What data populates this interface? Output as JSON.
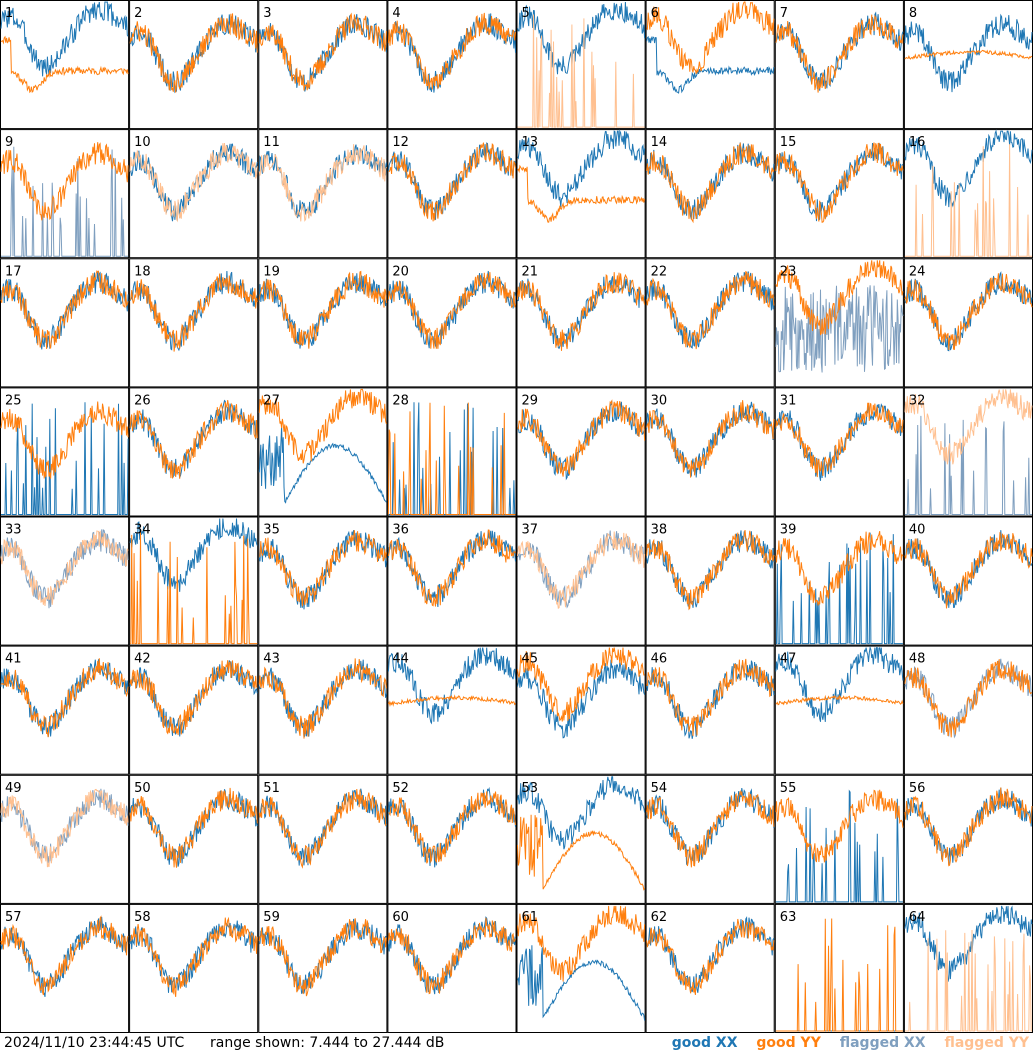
{
  "footer": {
    "timestamp": "2024/11/10 23:44:45 UTC",
    "range_text": "range shown: 7.444 to 27.444 dB"
  },
  "legend": [
    {
      "label": "good XX",
      "color": "#1f77b4"
    },
    {
      "label": "good YY",
      "color": "#ff7f0e"
    },
    {
      "label": "flagged XX",
      "color": "#7f9fbf"
    },
    {
      "label": "flagged YY",
      "color": "#ffc090"
    }
  ],
  "chart_data": {
    "type": "line",
    "title": "",
    "xlabel": "",
    "ylabel": "",
    "ylim_db": [
      7.444,
      27.444
    ],
    "grid_layout": "8x8",
    "panels": [
      {
        "id": "1",
        "xx": "good",
        "yy": "good",
        "xx_shape": "high",
        "yy_shape": "dip"
      },
      {
        "id": "2",
        "xx": "good",
        "yy": "good",
        "xx_shape": "normal",
        "yy_shape": "normal"
      },
      {
        "id": "3",
        "xx": "good",
        "yy": "good",
        "xx_shape": "normal",
        "yy_shape": "normal"
      },
      {
        "id": "4",
        "xx": "good",
        "yy": "good",
        "xx_shape": "normal",
        "yy_shape": "normal"
      },
      {
        "id": "5",
        "xx": "good",
        "yy": "flagged",
        "xx_shape": "high",
        "yy_shape": "spikes"
      },
      {
        "id": "6",
        "xx": "good",
        "yy": "good",
        "xx_shape": "dip",
        "yy_shape": "high"
      },
      {
        "id": "7",
        "xx": "good",
        "yy": "good",
        "xx_shape": "normal",
        "yy_shape": "normal"
      },
      {
        "id": "8",
        "xx": "good",
        "yy": "good",
        "xx_shape": "normal",
        "yy_shape": "flat"
      },
      {
        "id": "9",
        "xx": "flagged",
        "yy": "good",
        "xx_shape": "spikes",
        "yy_shape": "normal"
      },
      {
        "id": "10",
        "xx": "good",
        "yy": "flagged",
        "xx_shape": "normal",
        "yy_shape": "normal"
      },
      {
        "id": "11",
        "xx": "good",
        "yy": "flagged",
        "xx_shape": "normal",
        "yy_shape": "normal"
      },
      {
        "id": "12",
        "xx": "good",
        "yy": "good",
        "xx_shape": "normal",
        "yy_shape": "normal"
      },
      {
        "id": "13",
        "xx": "good",
        "yy": "good",
        "xx_shape": "high",
        "yy_shape": "dip"
      },
      {
        "id": "14",
        "xx": "good",
        "yy": "good",
        "xx_shape": "normal",
        "yy_shape": "normal"
      },
      {
        "id": "15",
        "xx": "good",
        "yy": "good",
        "xx_shape": "normal",
        "yy_shape": "normal"
      },
      {
        "id": "16",
        "xx": "good",
        "yy": "flagged",
        "xx_shape": "high",
        "yy_shape": "spikes"
      },
      {
        "id": "17",
        "xx": "good",
        "yy": "good",
        "xx_shape": "normal",
        "yy_shape": "normal"
      },
      {
        "id": "18",
        "xx": "good",
        "yy": "good",
        "xx_shape": "normal",
        "yy_shape": "normal"
      },
      {
        "id": "19",
        "xx": "good",
        "yy": "good",
        "xx_shape": "normal",
        "yy_shape": "normal"
      },
      {
        "id": "20",
        "xx": "good",
        "yy": "good",
        "xx_shape": "normal",
        "yy_shape": "normal"
      },
      {
        "id": "21",
        "xx": "good",
        "yy": "good",
        "xx_shape": "normal",
        "yy_shape": "normal"
      },
      {
        "id": "22",
        "xx": "good",
        "yy": "good",
        "xx_shape": "normal",
        "yy_shape": "normal"
      },
      {
        "id": "23",
        "xx": "flagged",
        "yy": "good",
        "xx_shape": "noisy",
        "yy_shape": "high"
      },
      {
        "id": "24",
        "xx": "good",
        "yy": "good",
        "xx_shape": "normal",
        "yy_shape": "normal"
      },
      {
        "id": "25",
        "xx": "good",
        "yy": "good",
        "xx_shape": "spikes",
        "yy_shape": "normal"
      },
      {
        "id": "26",
        "xx": "good",
        "yy": "good",
        "xx_shape": "normal",
        "yy_shape": "normal"
      },
      {
        "id": "27",
        "xx": "good",
        "yy": "good",
        "xx_shape": "bump",
        "yy_shape": "high"
      },
      {
        "id": "28",
        "xx": "good",
        "yy": "good",
        "xx_shape": "spikes",
        "yy_shape": "spikes"
      },
      {
        "id": "29",
        "xx": "good",
        "yy": "good",
        "xx_shape": "normal",
        "yy_shape": "normal"
      },
      {
        "id": "30",
        "xx": "good",
        "yy": "good",
        "xx_shape": "normal",
        "yy_shape": "normal"
      },
      {
        "id": "31",
        "xx": "good",
        "yy": "good",
        "xx_shape": "normal",
        "yy_shape": "normal"
      },
      {
        "id": "32",
        "xx": "flagged",
        "yy": "flagged",
        "xx_shape": "spikes",
        "yy_shape": "high"
      },
      {
        "id": "33",
        "xx": "flagged",
        "yy": "flagged",
        "xx_shape": "normal",
        "yy_shape": "normal"
      },
      {
        "id": "34",
        "xx": "good",
        "yy": "good",
        "xx_shape": "high",
        "yy_shape": "spikes"
      },
      {
        "id": "35",
        "xx": "good",
        "yy": "good",
        "xx_shape": "normal",
        "yy_shape": "normal"
      },
      {
        "id": "36",
        "xx": "good",
        "yy": "good",
        "xx_shape": "normal",
        "yy_shape": "normal"
      },
      {
        "id": "37",
        "xx": "flagged",
        "yy": "flagged",
        "xx_shape": "normal",
        "yy_shape": "normal"
      },
      {
        "id": "38",
        "xx": "good",
        "yy": "good",
        "xx_shape": "normal",
        "yy_shape": "normal"
      },
      {
        "id": "39",
        "xx": "good",
        "yy": "good",
        "xx_shape": "spikes",
        "yy_shape": "normal"
      },
      {
        "id": "40",
        "xx": "good",
        "yy": "good",
        "xx_shape": "normal",
        "yy_shape": "normal"
      },
      {
        "id": "41",
        "xx": "good",
        "yy": "good",
        "xx_shape": "normal",
        "yy_shape": "normal"
      },
      {
        "id": "42",
        "xx": "good",
        "yy": "good",
        "xx_shape": "normal",
        "yy_shape": "normal"
      },
      {
        "id": "43",
        "xx": "good",
        "yy": "good",
        "xx_shape": "normal",
        "yy_shape": "normal"
      },
      {
        "id": "44",
        "xx": "good",
        "yy": "good",
        "xx_shape": "high",
        "yy_shape": "flat"
      },
      {
        "id": "45",
        "xx": "good",
        "yy": "good",
        "xx_shape": "normal",
        "yy_shape": "high"
      },
      {
        "id": "46",
        "xx": "good",
        "yy": "good",
        "xx_shape": "normal",
        "yy_shape": "normal"
      },
      {
        "id": "47",
        "xx": "good",
        "yy": "good",
        "xx_shape": "high",
        "yy_shape": "flat"
      },
      {
        "id": "48",
        "xx": "flagged",
        "yy": "good",
        "xx_shape": "normal",
        "yy_shape": "normal"
      },
      {
        "id": "49",
        "xx": "flagged",
        "yy": "flagged",
        "xx_shape": "normal",
        "yy_shape": "normal"
      },
      {
        "id": "50",
        "xx": "good",
        "yy": "good",
        "xx_shape": "normal",
        "yy_shape": "normal"
      },
      {
        "id": "51",
        "xx": "good",
        "yy": "good",
        "xx_shape": "normal",
        "yy_shape": "normal"
      },
      {
        "id": "52",
        "xx": "good",
        "yy": "good",
        "xx_shape": "normal",
        "yy_shape": "normal"
      },
      {
        "id": "53",
        "xx": "good",
        "yy": "good",
        "xx_shape": "high",
        "yy_shape": "bump"
      },
      {
        "id": "54",
        "xx": "good",
        "yy": "good",
        "xx_shape": "normal",
        "yy_shape": "normal"
      },
      {
        "id": "55",
        "xx": "good",
        "yy": "good",
        "xx_shape": "spikes",
        "yy_shape": "normal"
      },
      {
        "id": "56",
        "xx": "good",
        "yy": "good",
        "xx_shape": "normal",
        "yy_shape": "normal"
      },
      {
        "id": "57",
        "xx": "good",
        "yy": "good",
        "xx_shape": "normal",
        "yy_shape": "normal"
      },
      {
        "id": "58",
        "xx": "good",
        "yy": "good",
        "xx_shape": "normal",
        "yy_shape": "normal"
      },
      {
        "id": "59",
        "xx": "good",
        "yy": "good",
        "xx_shape": "normal",
        "yy_shape": "normal"
      },
      {
        "id": "60",
        "xx": "good",
        "yy": "good",
        "xx_shape": "normal",
        "yy_shape": "normal"
      },
      {
        "id": "61",
        "xx": "good",
        "yy": "good",
        "xx_shape": "bump",
        "yy_shape": "high"
      },
      {
        "id": "62",
        "xx": "good",
        "yy": "good",
        "xx_shape": "normal",
        "yy_shape": "normal"
      },
      {
        "id": "63",
        "xx": "good",
        "yy": "good",
        "xx_shape": "flat_low",
        "yy_shape": "spikes"
      },
      {
        "id": "64",
        "xx": "good",
        "yy": "flagged",
        "xx_shape": "high",
        "yy_shape": "spikes"
      }
    ]
  }
}
